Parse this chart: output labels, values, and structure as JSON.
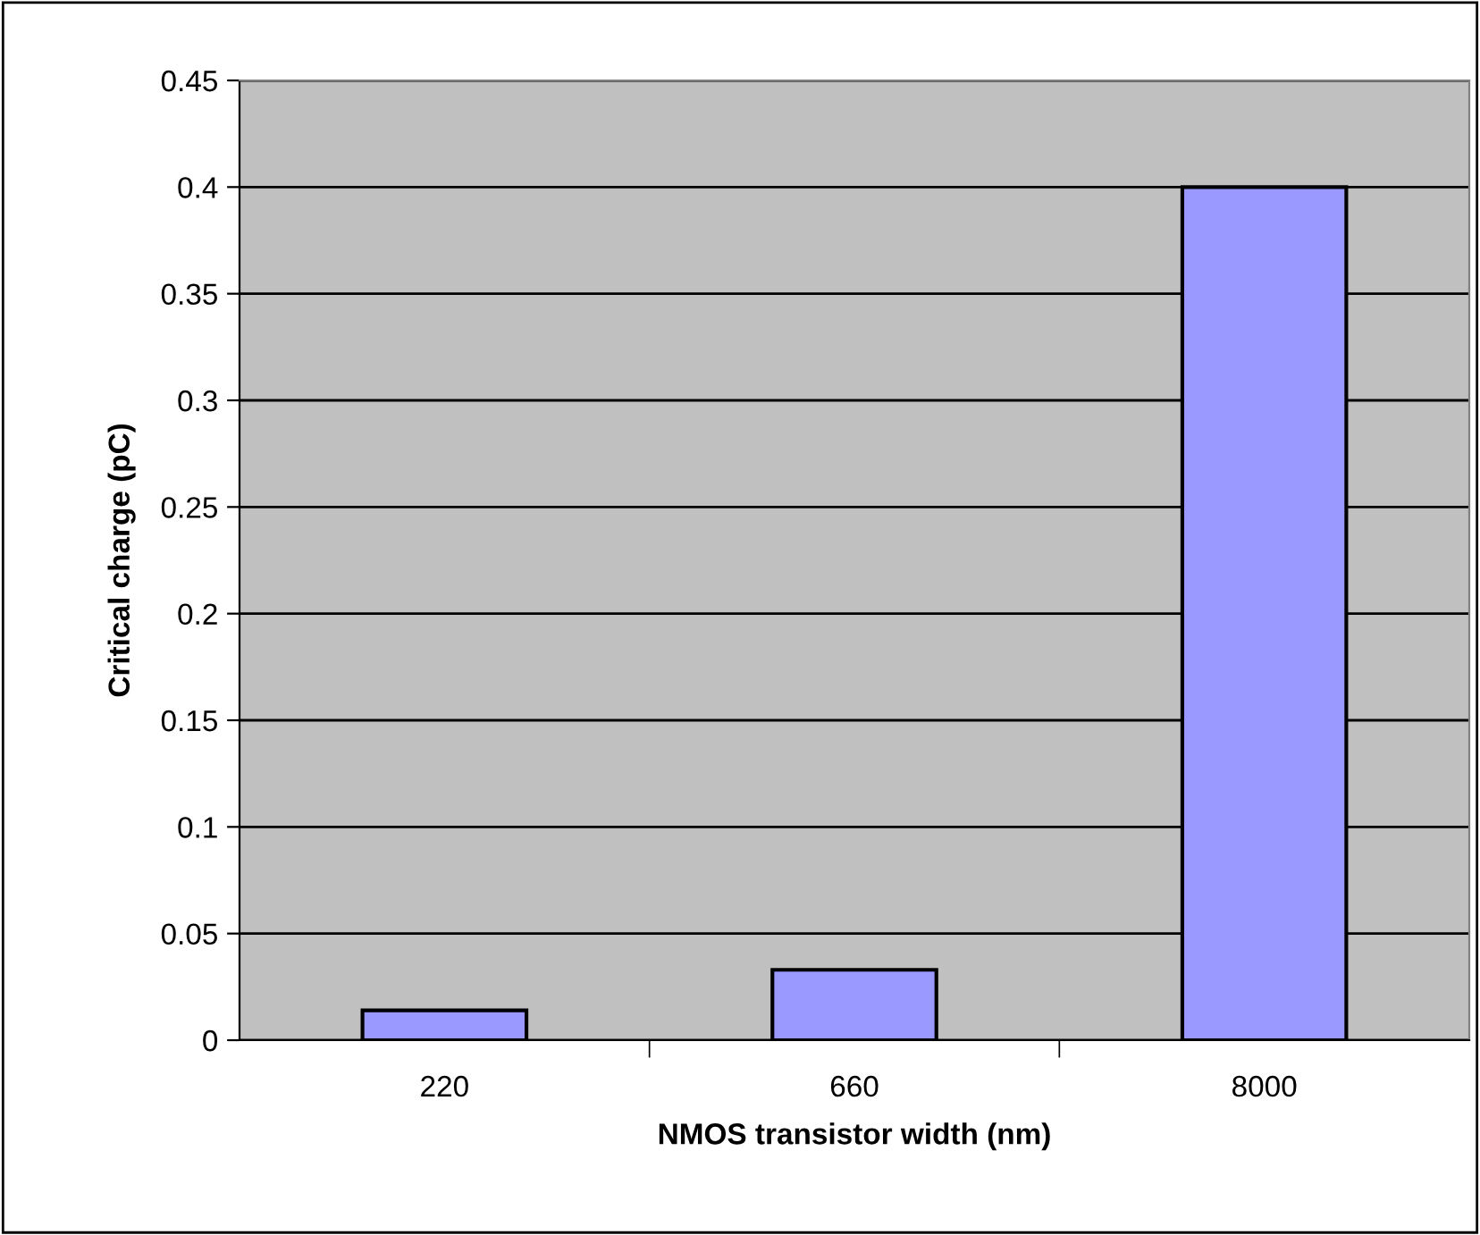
{
  "chart_data": {
    "type": "bar",
    "xlabel": "NMOS transistor width (nm)",
    "ylabel": "Critical charge (pC)",
    "categories": [
      "220",
      "660",
      "8000"
    ],
    "values": [
      0.014,
      0.033,
      0.4
    ],
    "color": "#9999ff",
    "ylim": [
      0,
      0.45
    ],
    "yticks": [
      0,
      0.05,
      0.1,
      0.15,
      0.2,
      0.25,
      0.3,
      0.35,
      0.4,
      0.45
    ],
    "grid": "y"
  }
}
